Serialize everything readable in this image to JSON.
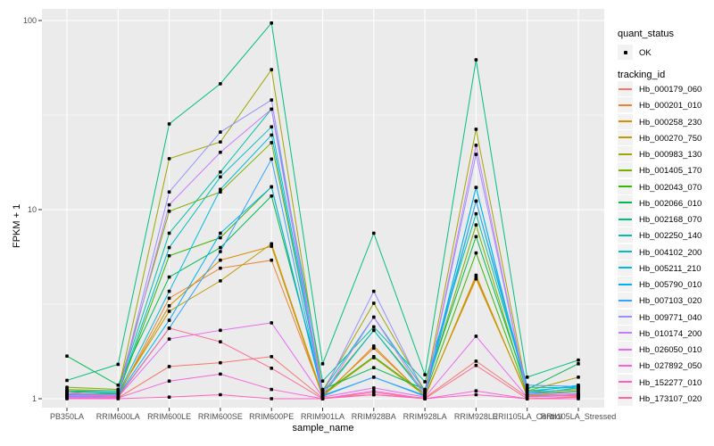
{
  "colors": {
    "panel_bg": "#EBEBEB",
    "grid_major": "#FFFFFF",
    "grid_minor": "#F7F7F7",
    "tick_mark": "#333333",
    "tick_label": "#4D4D4D",
    "point": "#000000",
    "legend_key_bg": "#F2F2F2"
  },
  "chart": {
    "quant_legend": {
      "title": "quant_status",
      "ok_label": "OK"
    },
    "series_legend": {
      "title": "tracking_id"
    }
  },
  "chart_data": {
    "type": "line",
    "title": "",
    "xlabel": "sample_name",
    "ylabel": "FPKM + 1",
    "yscale": "log10",
    "ylim": [
      1,
      100
    ],
    "yticks": [
      1,
      10,
      100
    ],
    "ytick_labels": [
      "1",
      "10",
      "100"
    ],
    "legend_position": "right",
    "grid": true,
    "categories": [
      "PB350LA",
      "RRIM600LA",
      "RRIM600LE",
      "RRIM600SE",
      "RRIM600PE",
      "RRIM901LA",
      "RRIM928BA",
      "RRIM928LA",
      "RRIM928LE",
      "RRII105LA_Control",
      "RRII105LA_Stressed"
    ],
    "series": [
      {
        "name": "Hb_000179_060",
        "color": "#F8766D",
        "values": [
          1.02,
          1.01,
          1.48,
          1.55,
          1.67,
          1.01,
          1.05,
          1.01,
          1.58,
          1.02,
          1.05
        ]
      },
      {
        "name": "Hb_000201_010",
        "color": "#EA8331",
        "values": [
          1.05,
          1.03,
          3.4,
          4.9,
          5.4,
          1.04,
          1.85,
          1.03,
          4.4,
          1.04,
          1.03
        ]
      },
      {
        "name": "Hb_000258_230",
        "color": "#D89000",
        "values": [
          1.04,
          1.05,
          3.1,
          5.4,
          6.4,
          1.02,
          1.9,
          1.02,
          4.5,
          1.03,
          1.04
        ]
      },
      {
        "name": "Hb_000270_750",
        "color": "#C09B00",
        "values": [
          1.1,
          1.07,
          2.9,
          4.2,
          6.6,
          1.04,
          1.65,
          1.04,
          4.3,
          1.05,
          1.06
        ]
      },
      {
        "name": "Hb_000983_130",
        "color": "#A3A500",
        "values": [
          1.12,
          1.1,
          18.6,
          22.8,
          55,
          1.1,
          3.2,
          1.1,
          26.6,
          1.1,
          1.3
        ]
      },
      {
        "name": "Hb_001405_170",
        "color": "#7CAE00",
        "values": [
          1.15,
          1.12,
          9.8,
          12.4,
          22.6,
          1.08,
          2.3,
          1.08,
          8.3,
          1.08,
          1.12
        ]
      },
      {
        "name": "Hb_002043_070",
        "color": "#39B600",
        "values": [
          1.1,
          1.06,
          5.7,
          7.1,
          13.2,
          1.06,
          1.67,
          1.06,
          5.9,
          1.06,
          1.1
        ]
      },
      {
        "name": "Hb_002066_010",
        "color": "#00BB4E",
        "values": [
          1.68,
          1.18,
          4.4,
          6.3,
          11.8,
          1.12,
          1.46,
          1.12,
          7.2,
          1.12,
          1.53
        ]
      },
      {
        "name": "Hb_002168_070",
        "color": "#00BF7D",
        "values": [
          1.25,
          1.52,
          28.4,
          46.3,
          97,
          1.53,
          7.5,
          1.34,
          62,
          1.3,
          1.6
        ]
      },
      {
        "name": "Hb_002250_140",
        "color": "#00C1A3",
        "values": [
          1.1,
          1.1,
          7.5,
          15.8,
          34,
          1.24,
          2.4,
          1.23,
          9.5,
          1.15,
          1.14
        ]
      },
      {
        "name": "Hb_004102_200",
        "color": "#00BFC4",
        "values": [
          1.08,
          1.08,
          6.3,
          14.9,
          27.4,
          1.1,
          2.7,
          1.1,
          11.1,
          1.1,
          1.16
        ]
      },
      {
        "name": "Hb_005211_210",
        "color": "#00BAE0",
        "values": [
          1.06,
          1.06,
          3.7,
          12.8,
          24.8,
          1.05,
          2.3,
          1.05,
          13.1,
          1.08,
          1.18
        ]
      },
      {
        "name": "Hb_005790_010",
        "color": "#00B0F6",
        "values": [
          1.05,
          1.04,
          2.6,
          7.5,
          13.2,
          1.04,
          1.3,
          1.04,
          13.1,
          1.06,
          1.14
        ]
      },
      {
        "name": "Hb_007103_020",
        "color": "#35A2FF",
        "values": [
          1.03,
          1.03,
          2.36,
          6.0,
          18.5,
          1.03,
          1.3,
          1.03,
          11.1,
          1.18,
          1.16
        ]
      },
      {
        "name": "Hb_009771_040",
        "color": "#9590FF",
        "values": [
          1.06,
          1.05,
          12.4,
          25.7,
          38,
          1.06,
          3.7,
          1.06,
          19.6,
          1.06,
          1.08
        ]
      },
      {
        "name": "Hb_010174_200",
        "color": "#C77CFF",
        "values": [
          1.04,
          1.04,
          10.6,
          20.1,
          34,
          1.04,
          2.7,
          1.04,
          21.9,
          1.04,
          1.06
        ]
      },
      {
        "name": "Hb_026050_010",
        "color": "#E76BF3",
        "values": [
          1.02,
          1.02,
          2.07,
          2.3,
          2.52,
          1.02,
          1.14,
          1.02,
          2.14,
          1.02,
          1.04
        ]
      },
      {
        "name": "Hb_027892_050",
        "color": "#FA62DB",
        "values": [
          1.01,
          1.01,
          1.24,
          1.35,
          1.12,
          1.0,
          1.1,
          1.0,
          1.1,
          1.0,
          1.02
        ]
      },
      {
        "name": "Hb_152277_010",
        "color": "#FF62BC",
        "values": [
          1.0,
          1.0,
          1.02,
          1.05,
          1.0,
          1.0,
          1.05,
          1.0,
          1.05,
          1.0,
          1.0
        ]
      },
      {
        "name": "Hb_173107_020",
        "color": "#FF6A98",
        "values": [
          1.08,
          1.02,
          2.36,
          2.0,
          1.45,
          1.0,
          1.08,
          1.0,
          1.5,
          1.0,
          1.02
        ]
      }
    ]
  }
}
